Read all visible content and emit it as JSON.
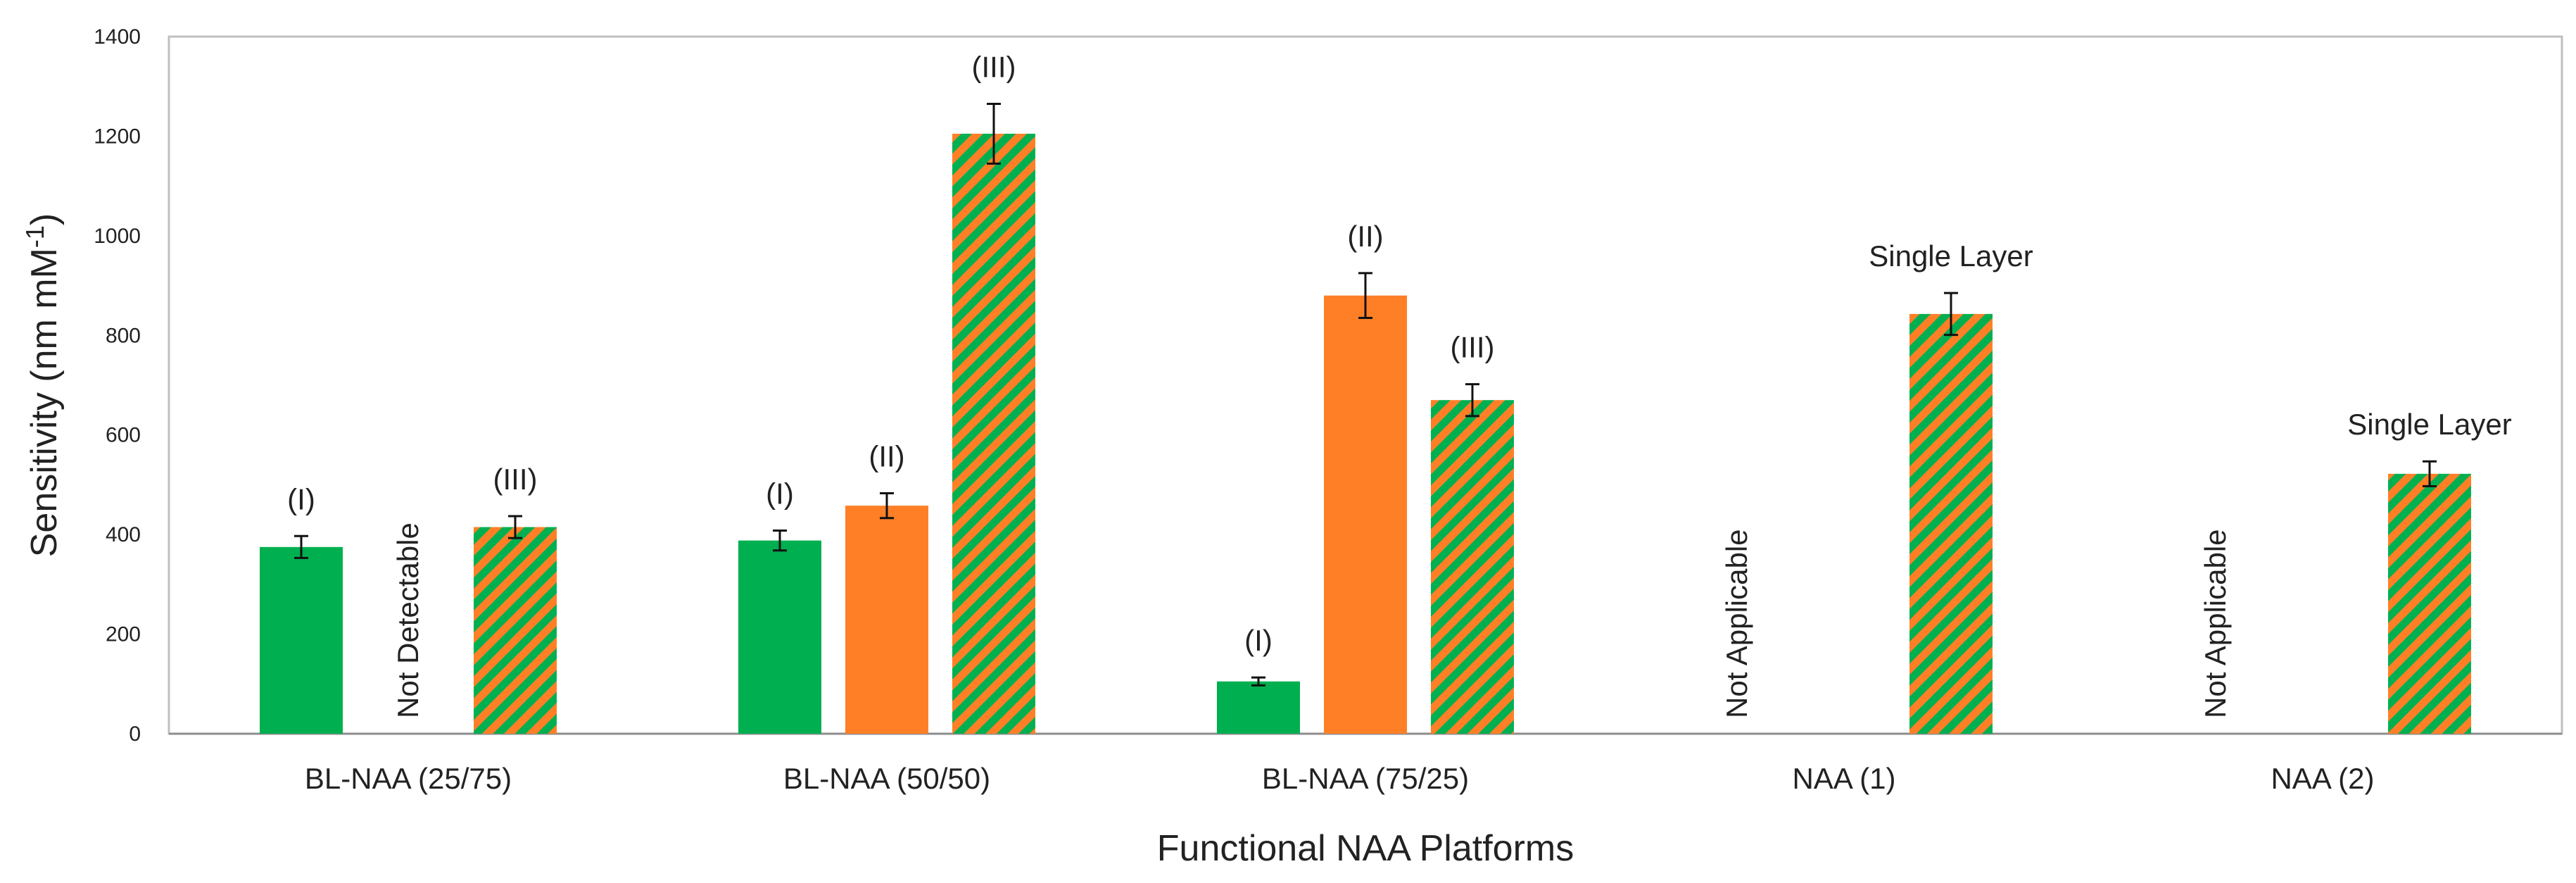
{
  "chart_data": {
    "type": "bar",
    "title": "",
    "xlabel": "Functional NAA Platforms",
    "ylabel": "Sensitivity (nm mM",
    "ylabel_sup": "-1",
    "ylabel_close": ")",
    "ylim": [
      0,
      1400
    ],
    "yticks": [
      0,
      200,
      400,
      600,
      800,
      1000,
      1200,
      1400
    ],
    "grid": false,
    "legend": "none",
    "colors": {
      "layer_I": "#00b050",
      "layer_II": "#ff7f27",
      "layer_III_stripe_a": "#00b050",
      "layer_III_stripe_b": "#ff7f27"
    },
    "categories": [
      "BL-NAA (25/75)",
      "BL-NAA (50/50)",
      "BL-NAA (75/25)",
      "NAA (1)",
      "NAA (2)"
    ],
    "series": [
      {
        "name": "(I)",
        "style": "solid-green",
        "values": [
          375,
          388,
          105,
          null,
          null
        ],
        "errors": [
          22,
          20,
          8,
          null,
          null
        ],
        "labels": [
          "(I)",
          "(I)",
          "(I)",
          "",
          ""
        ]
      },
      {
        "name": "(II)",
        "style": "solid-orange",
        "values": [
          null,
          458,
          880,
          null,
          null
        ],
        "errors": [
          null,
          25,
          45,
          null,
          null
        ],
        "labels": [
          "",
          "(II)",
          "(II)",
          "",
          ""
        ]
      },
      {
        "name": "(III)",
        "style": "hatched-green-orange",
        "values": [
          415,
          1205,
          670,
          843,
          522
        ],
        "errors": [
          22,
          60,
          32,
          42,
          25
        ],
        "labels": [
          "(III)",
          "(III)",
          "(III)",
          "Single Layer",
          "Single Layer"
        ]
      }
    ],
    "annotations": [
      {
        "category": "BL-NAA (25/75)",
        "series": "(II)",
        "text": "Not Detectable"
      },
      {
        "category": "NAA (1)",
        "series": "(I)",
        "text": "Not Applicable"
      },
      {
        "category": "NAA (2)",
        "series": "(I)",
        "text": "Not Applicable"
      }
    ]
  }
}
